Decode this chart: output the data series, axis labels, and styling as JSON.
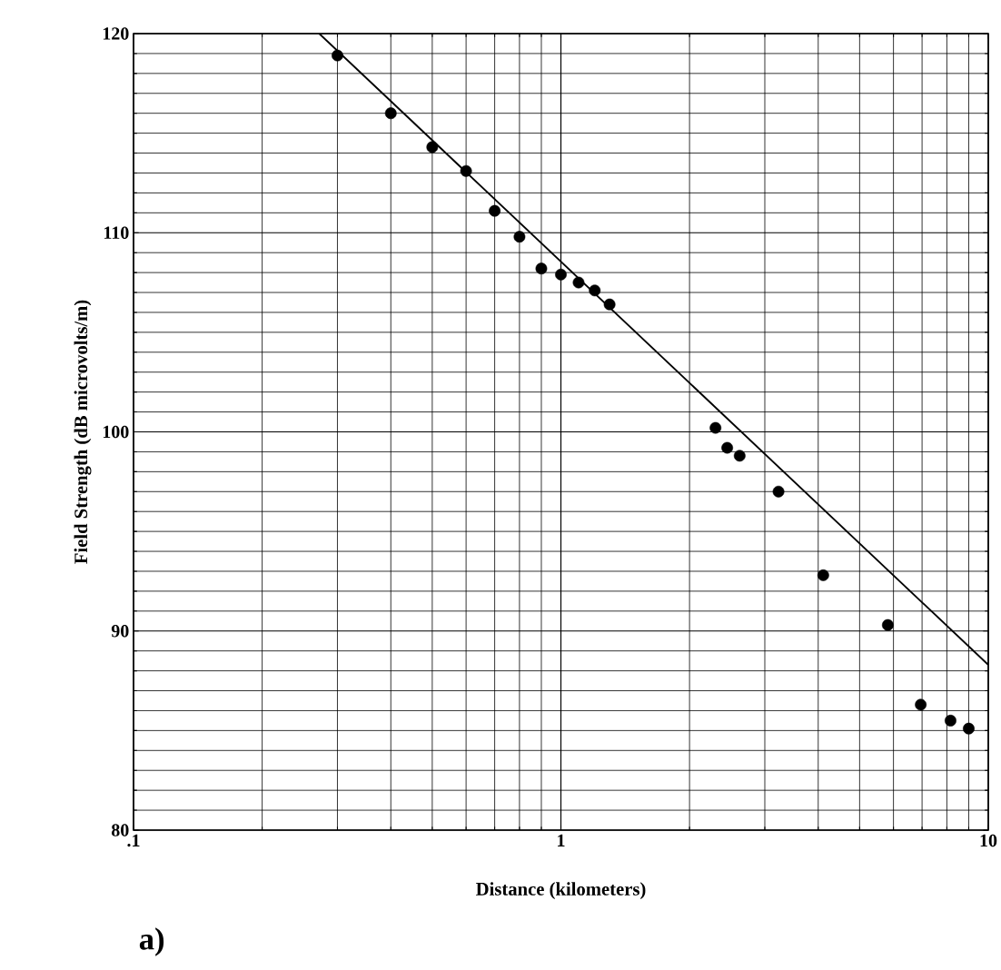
{
  "chart_data": {
    "type": "scatter",
    "xlabel": "Distance (kilometers)",
    "ylabel": "Field Strength (dB microvolts/m)",
    "annotations": [
      "a)"
    ],
    "log": "x",
    "xlim": [
      0.1,
      10
    ],
    "ylim": [
      80,
      120
    ],
    "xticks": [
      {
        "value": 0.1,
        "label": ".1"
      },
      1,
      10
    ],
    "yticks": [
      80,
      90,
      100,
      110,
      120
    ],
    "grid": true,
    "series": [
      {
        "type": "scatter",
        "color": "#000000",
        "marker": "circle",
        "x": [
          0.3,
          0.4,
          0.5,
          0.6,
          0.7,
          0.8,
          0.9,
          1.0,
          1.1,
          1.2,
          1.3,
          2.3,
          2.45,
          2.62,
          3.23,
          4.11,
          5.82,
          6.95,
          8.16,
          9.0
        ],
        "values": [
          118.9,
          116.0,
          114.3,
          113.1,
          111.1,
          109.8,
          108.2,
          107.9,
          107.5,
          107.1,
          106.4,
          100.2,
          99.2,
          98.8,
          97.0,
          92.8,
          90.3,
          86.3,
          85.5,
          85.1
        ]
      },
      {
        "type": "line",
        "color": "#000000",
        "marker": "none",
        "x": [
          0.272,
          10
        ],
        "values": [
          120,
          88.3
        ]
      }
    ]
  }
}
